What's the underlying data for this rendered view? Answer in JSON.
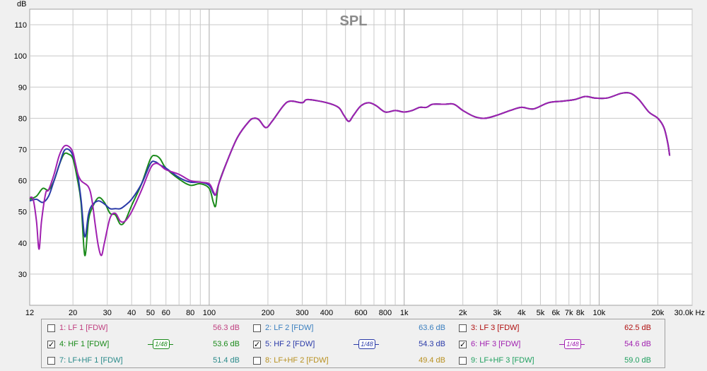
{
  "colors": {
    "background": "#f0f0f0",
    "plot_bg": "#ffffff",
    "grid": "#c8c8c8",
    "series": {
      "lf1": "#c04080",
      "lf2": "#3a7fbf",
      "lf3": "#b01010",
      "hf1": "#1a8a1a",
      "hf2": "#2a3aa8",
      "hf3": "#a020b0",
      "lfhf1": "#2a8a8a",
      "lfhf2": "#b89020",
      "lfhf3": "#20a060"
    }
  },
  "legend": {
    "items": [
      {
        "key": "lf1",
        "label": "1: LF 1 [FDW]",
        "value": "56.3 dB",
        "checked": false,
        "smoothing": ""
      },
      {
        "key": "lf2",
        "label": "2: LF 2 [FDW]",
        "value": "63.6 dB",
        "checked": false,
        "smoothing": ""
      },
      {
        "key": "lf3",
        "label": "3: LF 3 [FDW]",
        "value": "62.5 dB",
        "checked": false,
        "smoothing": ""
      },
      {
        "key": "hf1",
        "label": "4: HF 1 [FDW]",
        "value": "53.6 dB",
        "checked": true,
        "smoothing": "1/48"
      },
      {
        "key": "hf2",
        "label": "5: HF 2 [FDW]",
        "value": "54.3 dB",
        "checked": true,
        "smoothing": "1/48"
      },
      {
        "key": "hf3",
        "label": "6: HF 3 [FDW]",
        "value": "54.6 dB",
        "checked": true,
        "smoothing": "1/48"
      },
      {
        "key": "lfhf1",
        "label": "7: LF+HF 1 [FDW]",
        "value": "51.4 dB",
        "checked": false,
        "smoothing": ""
      },
      {
        "key": "lfhf2",
        "label": "8: LF+HF 2 [FDW]",
        "value": "49.4 dB",
        "checked": false,
        "smoothing": ""
      },
      {
        "key": "lfhf3",
        "label": "9: LF+HF 3 [FDW]",
        "value": "59.0 dB",
        "checked": false,
        "smoothing": ""
      }
    ],
    "check_mark": "✓"
  },
  "chart_data": {
    "type": "line",
    "title": "SPL",
    "ylabel": "dB",
    "xlabel": "Hz",
    "x_scale": "log",
    "xlim": [
      12,
      30000
    ],
    "ylim": [
      20,
      115
    ],
    "grid": true,
    "y_ticks": [
      30,
      40,
      50,
      60,
      70,
      80,
      90,
      100,
      110
    ],
    "x_ticks": [
      {
        "v": 12,
        "label": "12"
      },
      {
        "v": 20,
        "label": "20"
      },
      {
        "v": 30,
        "label": "30"
      },
      {
        "v": 40,
        "label": "40"
      },
      {
        "v": 50,
        "label": "50"
      },
      {
        "v": 60,
        "label": "60"
      },
      {
        "v": 80,
        "label": "80"
      },
      {
        "v": 100,
        "label": "100"
      },
      {
        "v": 200,
        "label": "200"
      },
      {
        "v": 300,
        "label": "300"
      },
      {
        "v": 400,
        "label": "400"
      },
      {
        "v": 600,
        "label": "600"
      },
      {
        "v": 800,
        "label": "800"
      },
      {
        "v": 1000,
        "label": "1k"
      },
      {
        "v": 2000,
        "label": "2k"
      },
      {
        "v": 3000,
        "label": "3k"
      },
      {
        "v": 4000,
        "label": "4k"
      },
      {
        "v": 5000,
        "label": "5k"
      },
      {
        "v": 6000,
        "label": "6k"
      },
      {
        "v": 7000,
        "label": "7k"
      },
      {
        "v": 8000,
        "label": "8k"
      },
      {
        "v": 10000,
        "label": "10k"
      },
      {
        "v": 20000,
        "label": "20k"
      },
      {
        "v": 30000,
        "label": "30.0k Hz"
      }
    ],
    "series": [
      {
        "key": "hf1",
        "name": "4: HF 1 [FDW]",
        "points": [
          [
            12,
            54
          ],
          [
            13,
            55
          ],
          [
            14,
            57.5
          ],
          [
            15,
            57
          ],
          [
            16,
            60
          ],
          [
            17,
            65
          ],
          [
            18,
            68.5
          ],
          [
            19,
            68.5
          ],
          [
            20,
            67
          ],
          [
            21,
            61
          ],
          [
            22,
            53
          ],
          [
            23,
            36
          ],
          [
            24,
            47
          ],
          [
            25,
            51
          ],
          [
            27,
            54.5
          ],
          [
            29,
            53
          ],
          [
            31,
            49.5
          ],
          [
            33,
            49
          ],
          [
            35,
            46
          ],
          [
            37,
            47
          ],
          [
            40,
            52
          ],
          [
            45,
            59
          ],
          [
            50,
            67
          ],
          [
            53,
            68
          ],
          [
            56,
            67
          ],
          [
            60,
            64
          ],
          [
            70,
            60.5
          ],
          [
            80,
            58.5
          ],
          [
            90,
            59
          ],
          [
            100,
            57.5
          ],
          [
            105,
            53
          ],
          [
            108,
            52
          ],
          [
            112,
            59
          ],
          [
            125,
            67
          ],
          [
            140,
            74
          ],
          [
            160,
            79
          ],
          [
            170,
            80
          ],
          [
            180,
            79.5
          ],
          [
            195,
            77
          ],
          [
            210,
            79
          ],
          [
            240,
            84
          ],
          [
            260,
            85.5
          ],
          [
            300,
            85
          ],
          [
            320,
            86
          ],
          [
            400,
            85
          ],
          [
            460,
            83.5
          ],
          [
            490,
            81
          ],
          [
            520,
            79
          ],
          [
            550,
            81
          ],
          [
            600,
            84
          ],
          [
            660,
            85
          ],
          [
            720,
            84
          ],
          [
            800,
            82
          ],
          [
            900,
            82.5
          ],
          [
            1000,
            82
          ],
          [
            1100,
            82.5
          ],
          [
            1200,
            83.5
          ],
          [
            1300,
            83.5
          ],
          [
            1400,
            84.5
          ],
          [
            1600,
            84.5
          ],
          [
            1800,
            84.5
          ],
          [
            2000,
            82.5
          ],
          [
            2300,
            80.5
          ],
          [
            2600,
            80
          ],
          [
            3000,
            81
          ],
          [
            3500,
            82.5
          ],
          [
            4000,
            83.5
          ],
          [
            4600,
            83
          ],
          [
            5500,
            85
          ],
          [
            6500,
            85.5
          ],
          [
            7500,
            86
          ],
          [
            8500,
            87
          ],
          [
            9500,
            86.5
          ],
          [
            11000,
            86.5
          ],
          [
            13000,
            88
          ],
          [
            14500,
            88
          ],
          [
            16000,
            86
          ],
          [
            18000,
            82
          ],
          [
            20000,
            80
          ],
          [
            21500,
            77
          ],
          [
            22500,
            72
          ],
          [
            23000,
            68
          ]
        ]
      },
      {
        "key": "hf2",
        "name": "5: HF 2 [FDW]",
        "points": [
          [
            12,
            53.5
          ],
          [
            13,
            54
          ],
          [
            14,
            53
          ],
          [
            15,
            55
          ],
          [
            16,
            60
          ],
          [
            17,
            65
          ],
          [
            18,
            69.5
          ],
          [
            19,
            70
          ],
          [
            20,
            68
          ],
          [
            21,
            63
          ],
          [
            22,
            54
          ],
          [
            23,
            42
          ],
          [
            24,
            49
          ],
          [
            25,
            52
          ],
          [
            27,
            53.5
          ],
          [
            29,
            52.5
          ],
          [
            31,
            51
          ],
          [
            33,
            51
          ],
          [
            35,
            51
          ],
          [
            37,
            52
          ],
          [
            40,
            54
          ],
          [
            45,
            59
          ],
          [
            50,
            65.5
          ],
          [
            53,
            66
          ],
          [
            56,
            65
          ],
          [
            60,
            64
          ],
          [
            70,
            61
          ],
          [
            80,
            59.5
          ],
          [
            90,
            59.5
          ],
          [
            100,
            58.5
          ],
          [
            105,
            56
          ],
          [
            108,
            55.5
          ],
          [
            112,
            59
          ],
          [
            125,
            67
          ],
          [
            140,
            74
          ],
          [
            160,
            79
          ],
          [
            170,
            80
          ],
          [
            180,
            79.5
          ],
          [
            195,
            77
          ],
          [
            210,
            79
          ],
          [
            240,
            84
          ],
          [
            260,
            85.5
          ],
          [
            300,
            85
          ],
          [
            320,
            86
          ],
          [
            400,
            85
          ],
          [
            460,
            83.5
          ],
          [
            490,
            81
          ],
          [
            520,
            79
          ],
          [
            550,
            81
          ],
          [
            600,
            84
          ],
          [
            660,
            85
          ],
          [
            720,
            84
          ],
          [
            800,
            82
          ],
          [
            900,
            82.5
          ],
          [
            1000,
            82
          ],
          [
            1100,
            82.5
          ],
          [
            1200,
            83.5
          ],
          [
            1300,
            83.5
          ],
          [
            1400,
            84.5
          ],
          [
            1600,
            84.5
          ],
          [
            1800,
            84.5
          ],
          [
            2000,
            82.5
          ],
          [
            2300,
            80.5
          ],
          [
            2600,
            80
          ],
          [
            3000,
            81
          ],
          [
            3500,
            82.5
          ],
          [
            4000,
            83.5
          ],
          [
            4600,
            83
          ],
          [
            5500,
            85
          ],
          [
            6500,
            85.5
          ],
          [
            7500,
            86
          ],
          [
            8500,
            87
          ],
          [
            9500,
            86.5
          ],
          [
            11000,
            86.5
          ],
          [
            13000,
            88
          ],
          [
            14500,
            88
          ],
          [
            16000,
            86
          ],
          [
            18000,
            82
          ],
          [
            20000,
            80
          ],
          [
            21500,
            77
          ],
          [
            22500,
            72
          ],
          [
            23000,
            68
          ]
        ]
      },
      {
        "key": "hf3",
        "name": "6: HF 3 [FDW]",
        "points": [
          [
            12,
            54.5
          ],
          [
            12.5,
            54
          ],
          [
            13,
            47
          ],
          [
            13.4,
            38
          ],
          [
            13.8,
            47
          ],
          [
            14.5,
            56
          ],
          [
            15,
            57
          ],
          [
            16,
            62
          ],
          [
            17,
            68
          ],
          [
            18,
            71
          ],
          [
            19,
            71
          ],
          [
            20,
            69
          ],
          [
            21,
            63
          ],
          [
            22,
            60
          ],
          [
            24,
            58
          ],
          [
            25,
            54
          ],
          [
            26,
            46
          ],
          [
            27,
            39
          ],
          [
            28,
            36
          ],
          [
            29,
            40
          ],
          [
            31,
            48
          ],
          [
            33,
            49.5
          ],
          [
            35,
            47
          ],
          [
            37,
            47
          ],
          [
            40,
            50
          ],
          [
            45,
            57
          ],
          [
            50,
            64
          ],
          [
            53,
            65.5
          ],
          [
            56,
            65
          ],
          [
            60,
            63.5
          ],
          [
            70,
            62
          ],
          [
            80,
            60
          ],
          [
            90,
            59.5
          ],
          [
            100,
            59
          ],
          [
            105,
            56.5
          ],
          [
            108,
            55.5
          ],
          [
            112,
            59
          ],
          [
            125,
            67
          ],
          [
            140,
            74
          ],
          [
            160,
            79
          ],
          [
            170,
            80
          ],
          [
            180,
            79.5
          ],
          [
            195,
            77
          ],
          [
            210,
            79
          ],
          [
            240,
            84
          ],
          [
            260,
            85.5
          ],
          [
            300,
            85
          ],
          [
            320,
            86
          ],
          [
            400,
            85
          ],
          [
            460,
            83.5
          ],
          [
            490,
            81
          ],
          [
            520,
            79
          ],
          [
            550,
            81
          ],
          [
            600,
            84
          ],
          [
            660,
            85
          ],
          [
            720,
            84
          ],
          [
            800,
            82
          ],
          [
            900,
            82.5
          ],
          [
            1000,
            82
          ],
          [
            1100,
            82.5
          ],
          [
            1200,
            83.5
          ],
          [
            1300,
            83.5
          ],
          [
            1400,
            84.5
          ],
          [
            1600,
            84.5
          ],
          [
            1800,
            84.5
          ],
          [
            2000,
            82.5
          ],
          [
            2300,
            80.5
          ],
          [
            2600,
            80
          ],
          [
            3000,
            81
          ],
          [
            3500,
            82.5
          ],
          [
            4000,
            83.5
          ],
          [
            4600,
            83
          ],
          [
            5500,
            85
          ],
          [
            6500,
            85.5
          ],
          [
            7500,
            86
          ],
          [
            8500,
            87
          ],
          [
            9500,
            86.5
          ],
          [
            11000,
            86.5
          ],
          [
            13000,
            88
          ],
          [
            14500,
            88
          ],
          [
            16000,
            86
          ],
          [
            18000,
            82
          ],
          [
            20000,
            80
          ],
          [
            21500,
            77
          ],
          [
            22500,
            72
          ],
          [
            23000,
            68
          ]
        ]
      }
    ]
  }
}
